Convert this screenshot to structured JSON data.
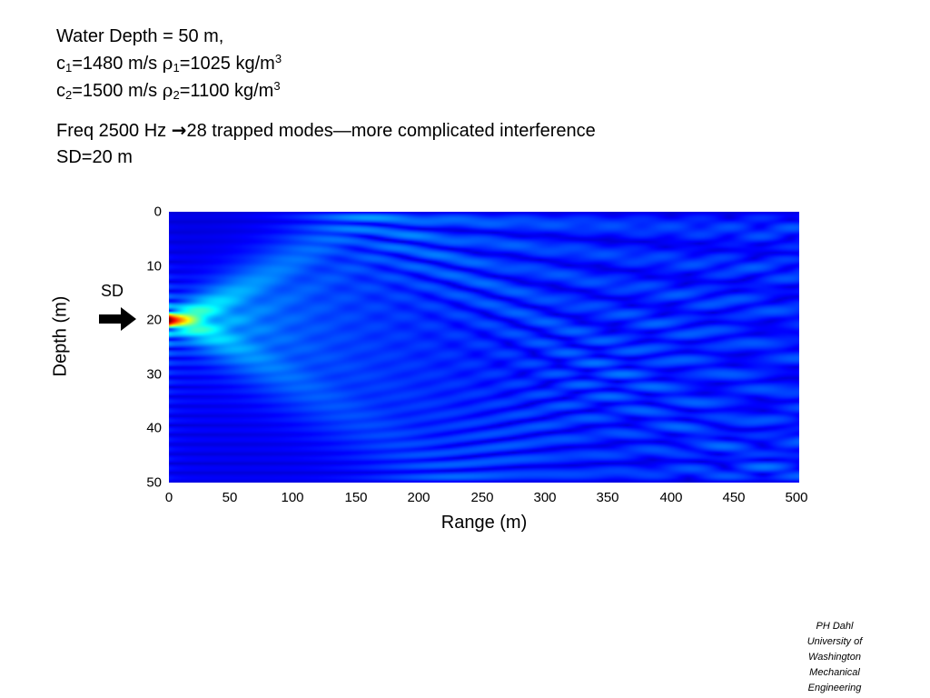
{
  "header": {
    "line1": "Water Depth = 50 m,",
    "c1": {
      "c": "c",
      "sub": "1",
      "rest": "=1480 m/s ",
      "rho": "ρ",
      "rho_sub": "1",
      "val": "=1025 kg/m",
      "sup": "3"
    },
    "c2": {
      "c": "c",
      "sub": "2",
      "rest": "=1500 m/s ",
      "rho": "ρ",
      "rho_sub": "2",
      "val": "=1100 kg/m",
      "sup": "3"
    },
    "freq_pre": "Freq 2500 Hz ",
    "freq_arrow": "→",
    "freq_post": "28 trapped modes—more complicated interference",
    "sd_line": "SD=20 m"
  },
  "annotation": {
    "sd_label": "SD"
  },
  "credits": {
    "line1": "PH Dahl",
    "line2": "University of Washington",
    "line3": "Mechanical Engineering"
  },
  "chart_data": {
    "type": "heatmap",
    "xlabel": "Range (m)",
    "ylabel": "Depth (m)",
    "xlim": [
      0,
      500
    ],
    "ylim": [
      0,
      50
    ],
    "y_inverted": true,
    "x_ticks": [
      "0",
      "50",
      "100",
      "150",
      "200",
      "250",
      "300",
      "350",
      "400",
      "450",
      "500"
    ],
    "y_ticks": [
      "0",
      "10",
      "20",
      "30",
      "40",
      "50"
    ],
    "source_depth": 20,
    "colormap": "jet",
    "colors": {
      "background": "#00008f",
      "peak": "#ff0000"
    }
  }
}
